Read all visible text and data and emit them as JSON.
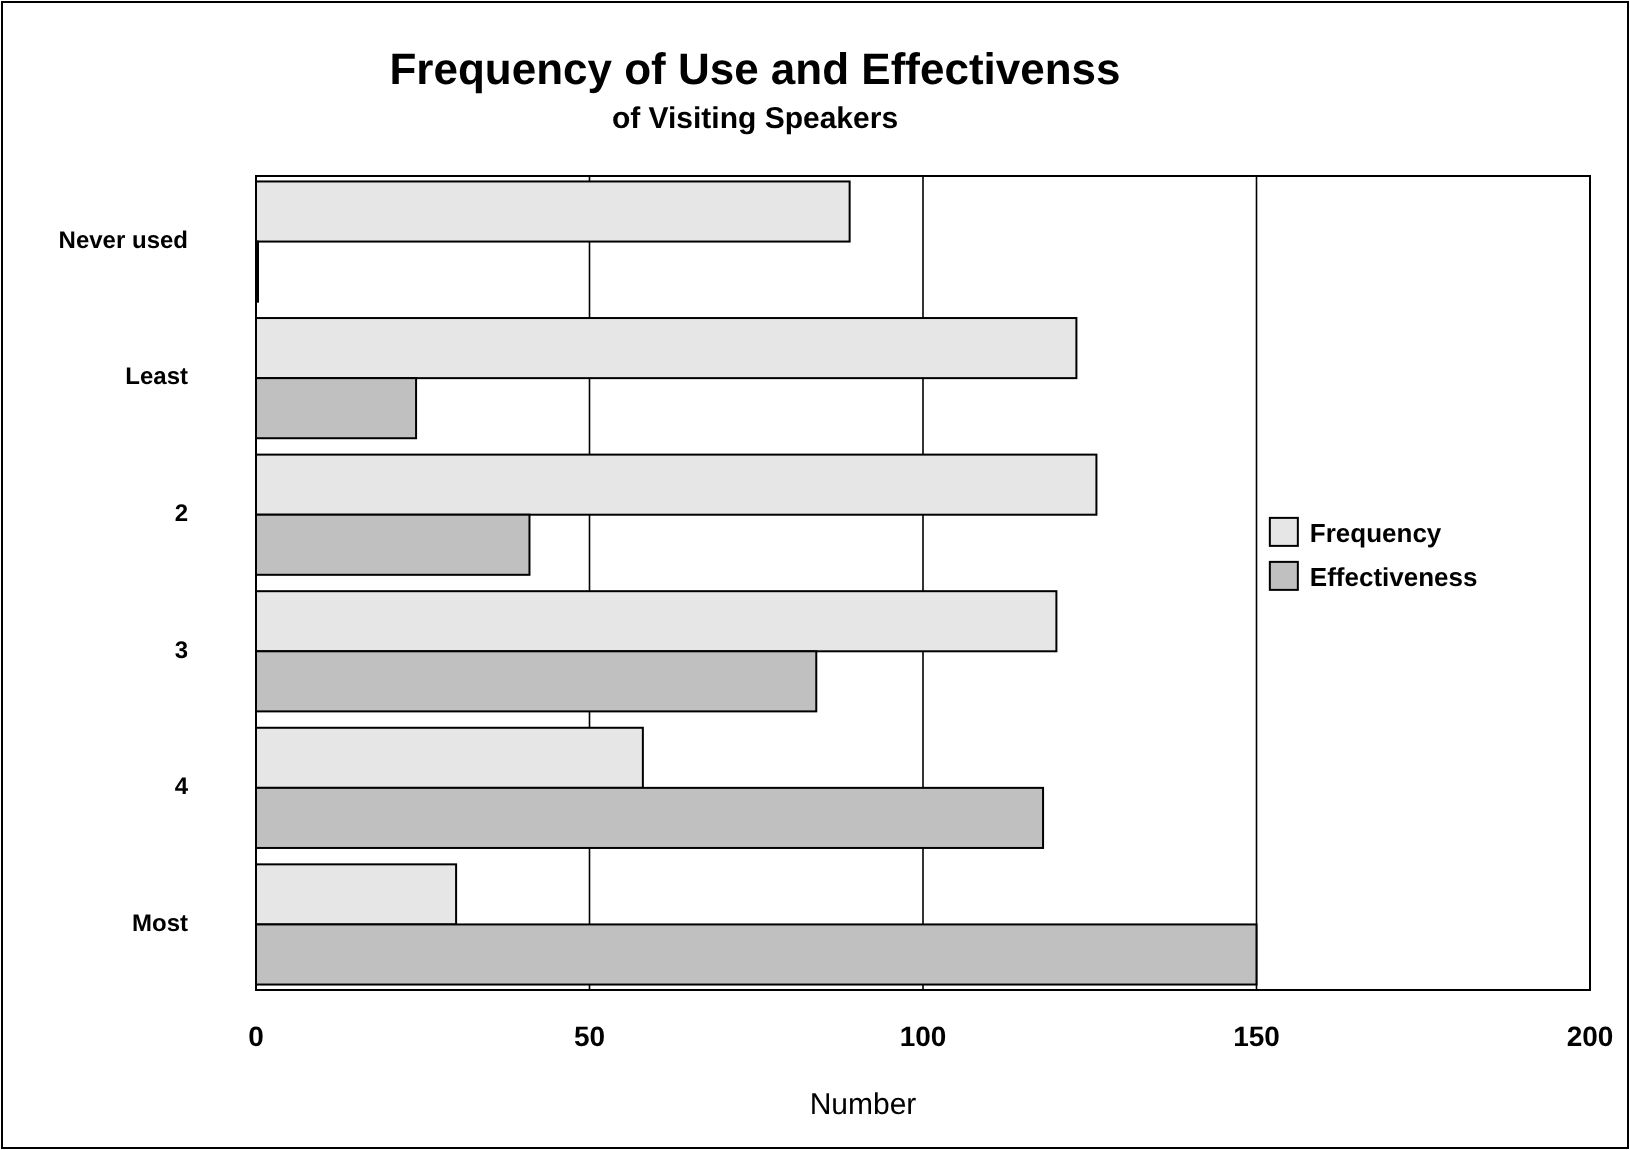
{
  "chart_data": {
    "type": "bar",
    "orientation": "horizontal",
    "title": "Frequency of Use and Effectivenss",
    "subtitle": "of Visiting Speakers",
    "xlabel": "Number",
    "categories": [
      "Never used",
      "Least",
      "2",
      "3",
      "4",
      "Most"
    ],
    "series": [
      {
        "name": "Frequency",
        "color": "#e6e6e6",
        "values": [
          89,
          123,
          126,
          120,
          58,
          30
        ]
      },
      {
        "name": "Effectiveness",
        "color": "#c0c0c0",
        "values": [
          0,
          24,
          41,
          84,
          118,
          150
        ]
      }
    ],
    "xlim": [
      0,
      200
    ],
    "xticks": [
      0,
      50,
      100,
      150,
      200
    ],
    "grid": "x",
    "legend": "right"
  }
}
